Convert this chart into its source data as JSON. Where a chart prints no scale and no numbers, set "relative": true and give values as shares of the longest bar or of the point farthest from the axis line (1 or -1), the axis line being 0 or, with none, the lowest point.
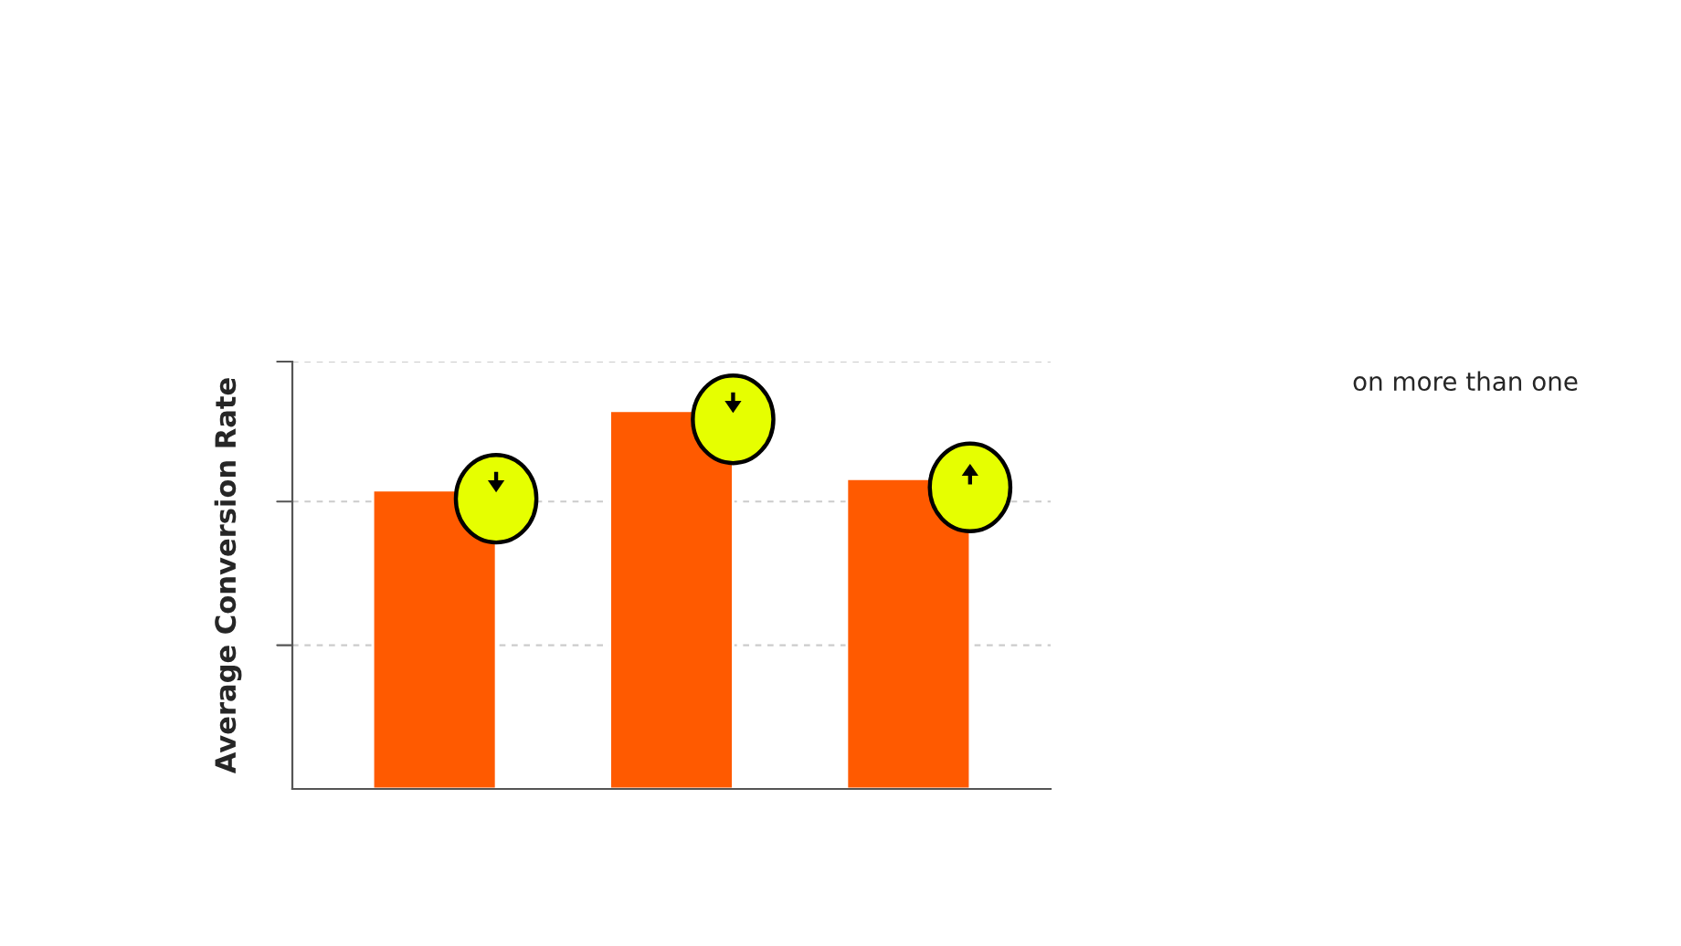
{
  "chart_data": {
    "type": "bar",
    "ylabel": "Average Conversion Rate",
    "categories": [
      null,
      null,
      null
    ],
    "values": [
      0.79,
      1,
      0.82
    ],
    "color": "#ff5a00",
    "relative": true,
    "ref_lines": [
      {
        "axis": "y",
        "value": 0.38,
        "color": "#cccccc",
        "line_style": "dashed"
      },
      {
        "axis": "y",
        "value": 0.76,
        "color": "#cccccc",
        "line_style": "dashed"
      },
      {
        "axis": "y",
        "value": 1.13,
        "color": "#cccccc",
        "line_style": "dashed"
      }
    ],
    "annotations": [
      "on more than one"
    ]
  }
}
